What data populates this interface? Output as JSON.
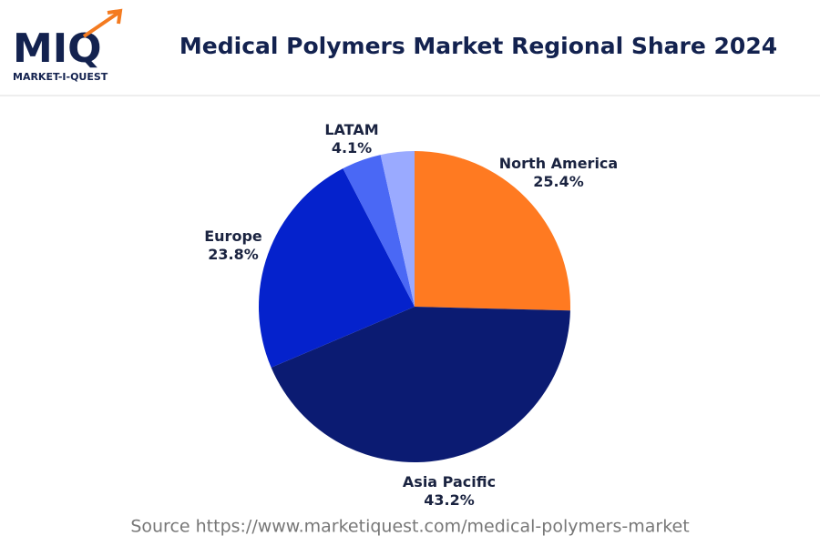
{
  "logo": {
    "mark": "MIQ",
    "name": "MARKET-I-QUEST"
  },
  "chart_data": {
    "type": "pie",
    "title": "Medical Polymers Market Regional Share 2024",
    "categories": [
      "North America",
      "Asia Pacific",
      "Europe",
      "LATAM",
      null
    ],
    "values": [
      25.4,
      43.2,
      23.8,
      4.1,
      3.5
    ],
    "value_labels": [
      "25.4%",
      "43.2%",
      "23.8%",
      "4.1%",
      null
    ],
    "colors": [
      "#ff7a21",
      "#0b1b72",
      "#0522cc",
      "#4a68f5",
      "#9aaaff"
    ]
  },
  "source": "Source https://www.marketiquest.com/medical-polymers-market"
}
